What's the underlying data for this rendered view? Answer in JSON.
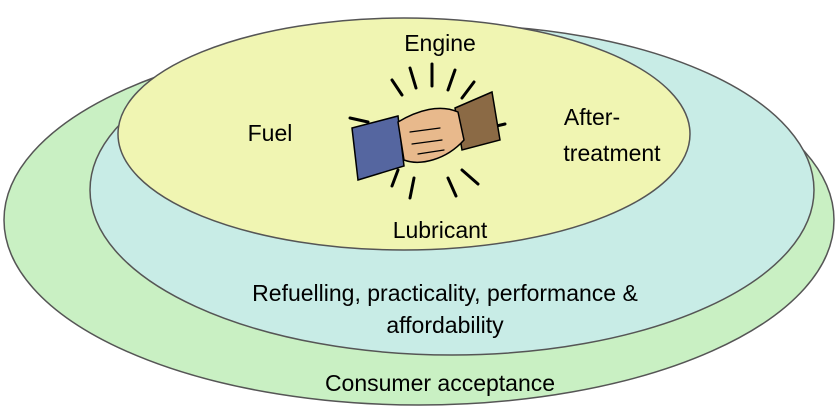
{
  "outer": {
    "label": "Consumer acceptance"
  },
  "middle": {
    "label_lines": [
      "Refuelling, practicality, performance &",
      "affordability"
    ]
  },
  "inner": {
    "top": "Engine",
    "left": "Fuel",
    "right_lines": [
      "After-",
      "treatment"
    ],
    "bottom": "Lubricant"
  }
}
